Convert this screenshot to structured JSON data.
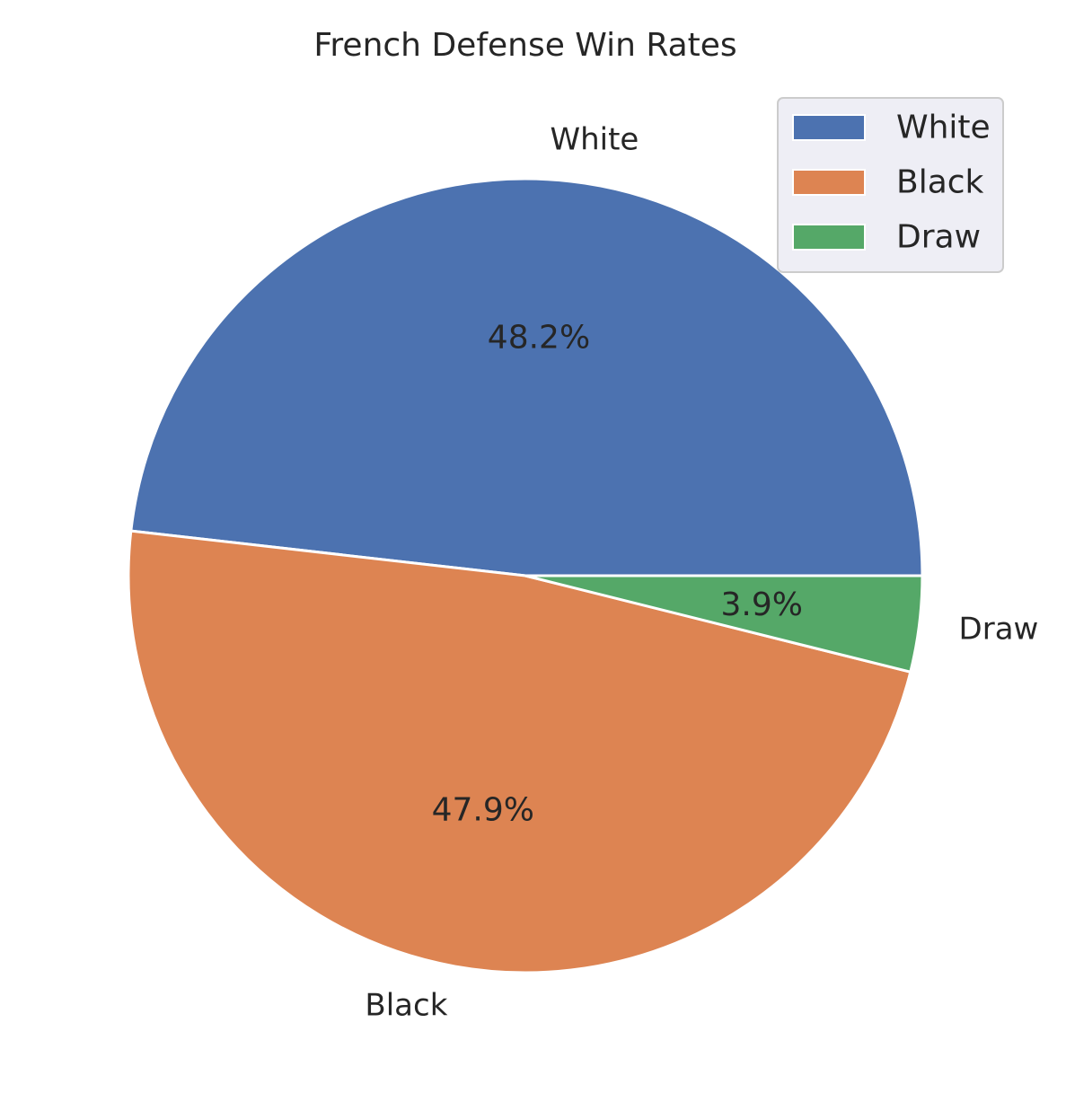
{
  "chart_data": {
    "type": "pie",
    "title": "French Defense Win Rates",
    "categories": [
      "White",
      "Black",
      "Draw"
    ],
    "values": [
      48.2,
      47.9,
      3.9
    ],
    "value_labels": [
      "48.2%",
      "47.9%",
      "3.9%"
    ],
    "colors": [
      "#4c72b0",
      "#dd8452",
      "#55a868"
    ],
    "start_angle_deg": 0,
    "direction": "counterclockwise",
    "legend": {
      "placement": "top-right",
      "entries": [
        "White",
        "Black",
        "Draw"
      ]
    }
  }
}
